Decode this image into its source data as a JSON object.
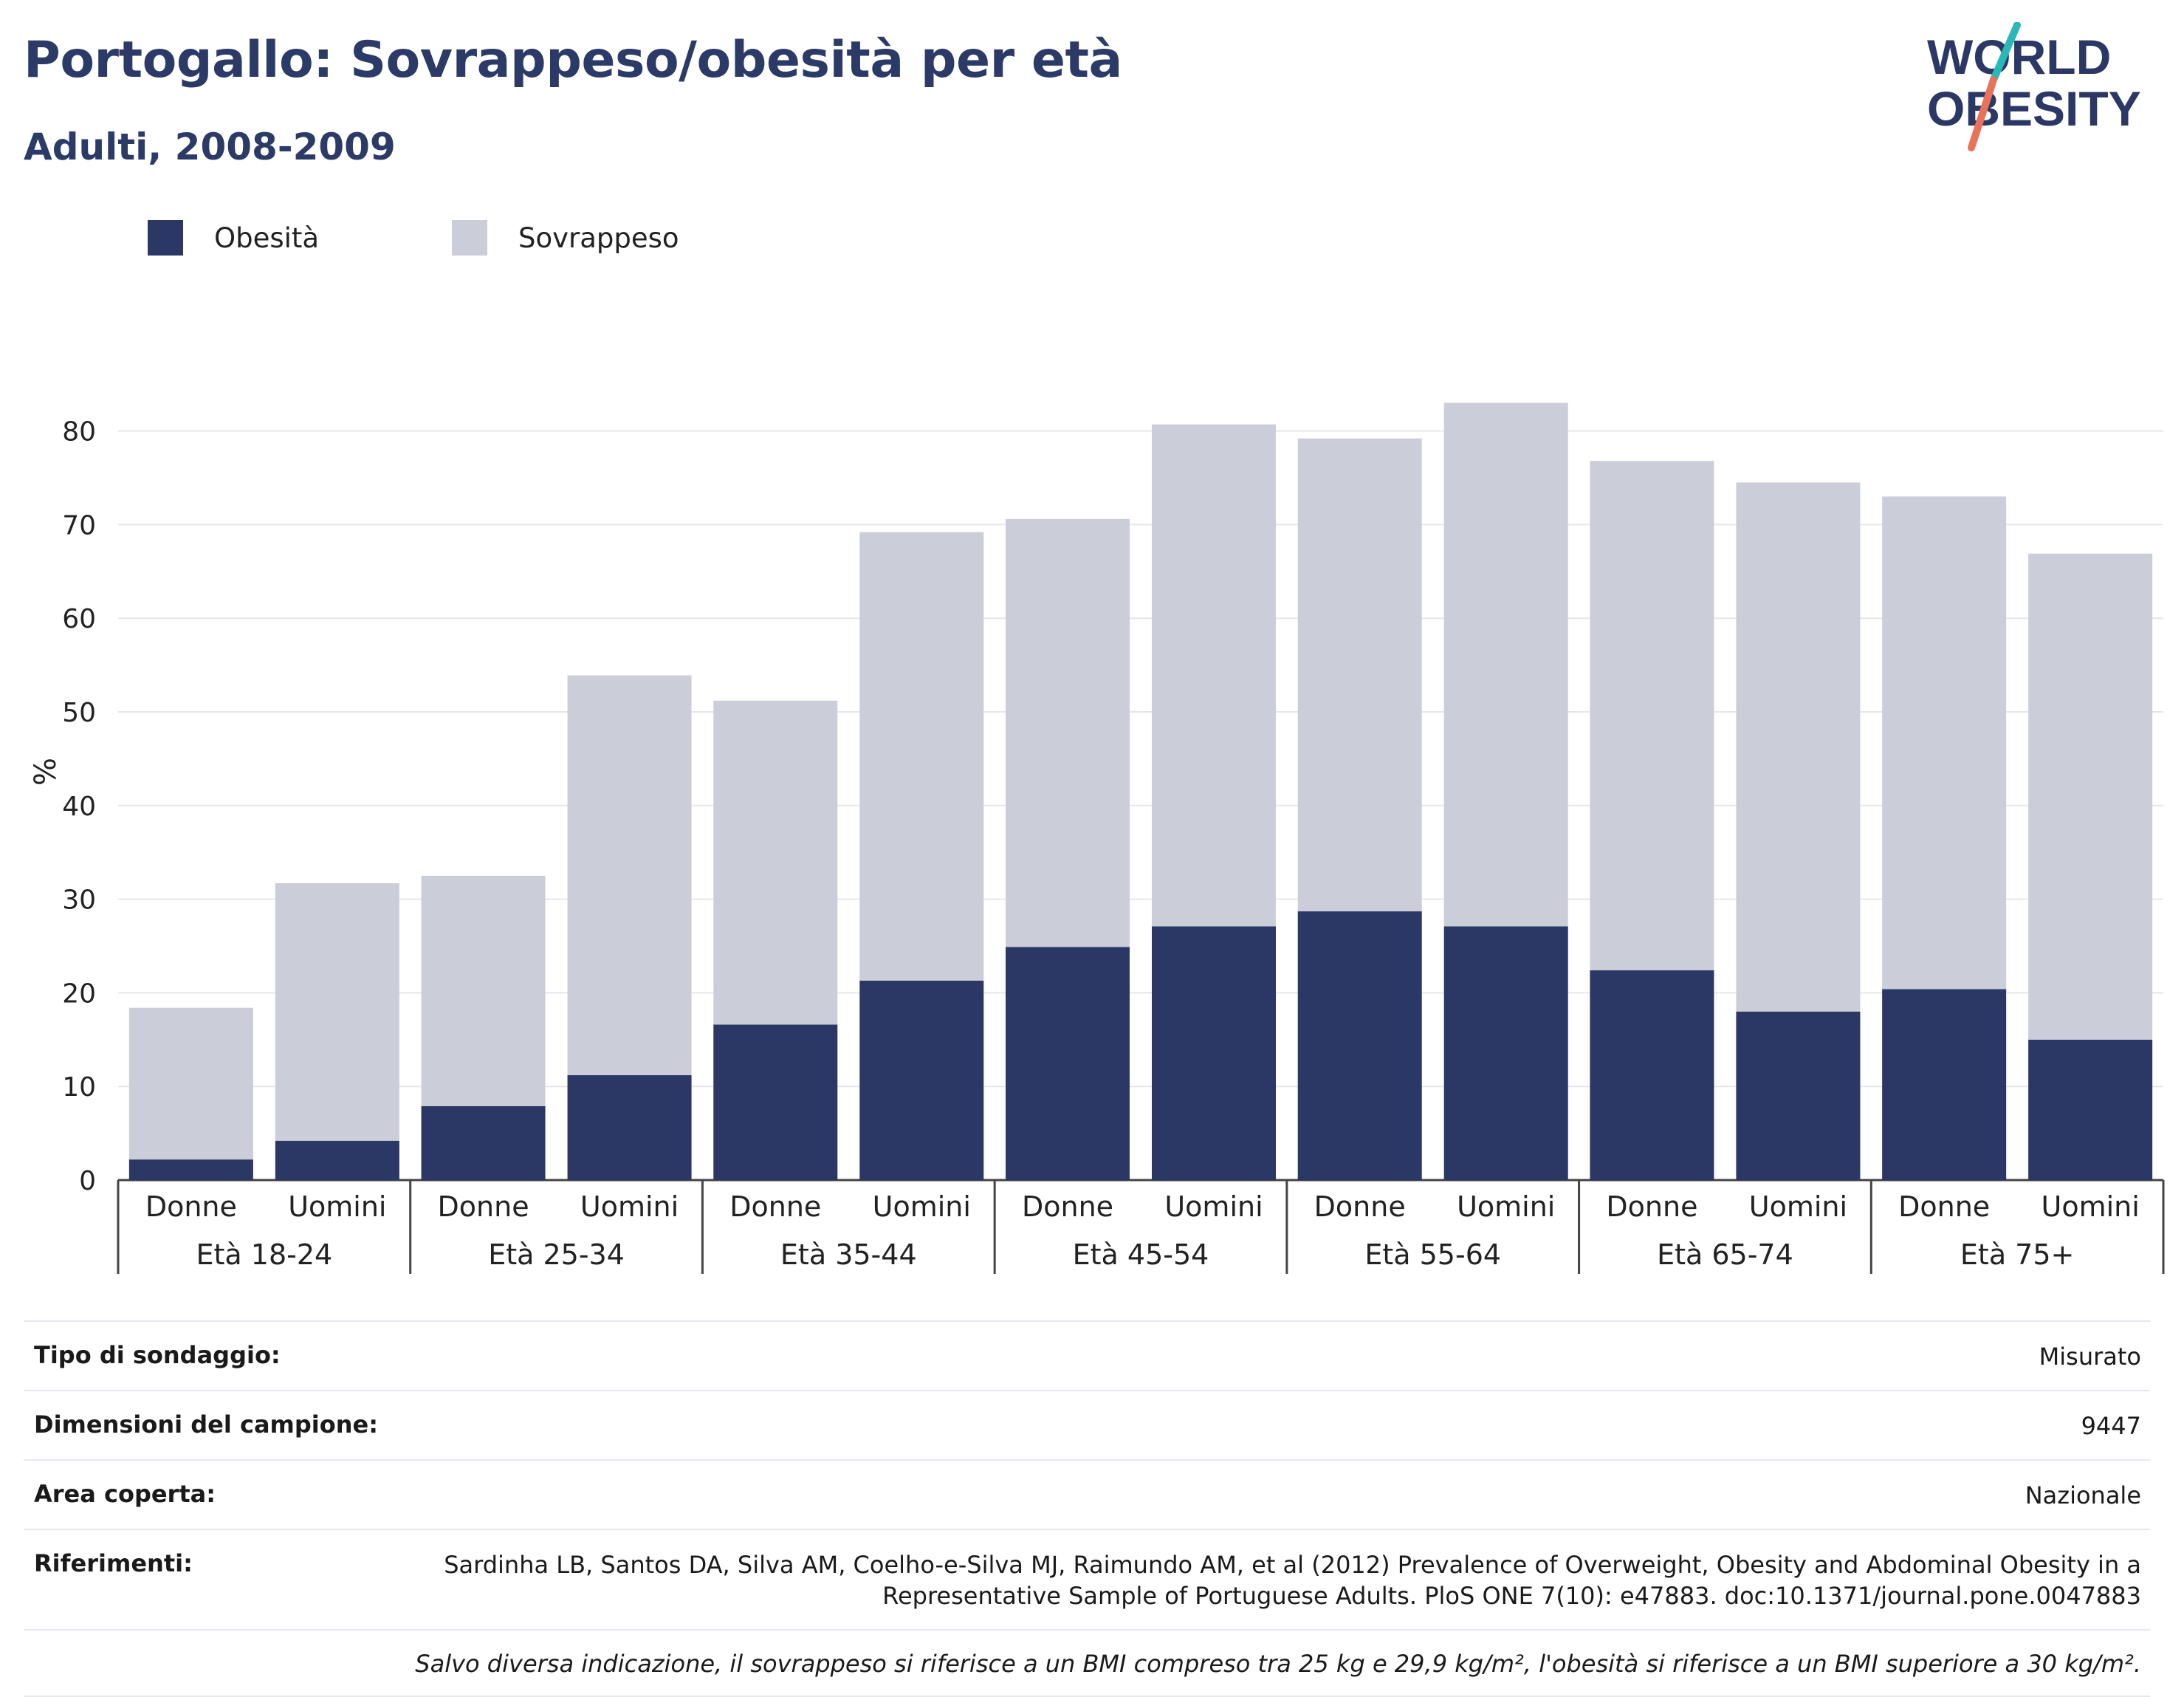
{
  "header": {
    "title": "Portogallo: Sovrappeso/obesità per età",
    "subtitle": "Adulti, 2008-2009"
  },
  "logo": {
    "line1": "WORLD",
    "line2": "OBESITY",
    "accent_colors": [
      "#2ab7b7",
      "#e8735a"
    ]
  },
  "legend": {
    "items": [
      {
        "label": "Obesità",
        "color": "#2b3764"
      },
      {
        "label": "Sovrappeso",
        "color": "#cbcdd9"
      }
    ]
  },
  "chart_data": {
    "type": "bar",
    "stacked": true,
    "ylabel": "%",
    "ylim": [
      0,
      85
    ],
    "yticks": [
      0,
      10,
      20,
      30,
      40,
      50,
      60,
      70,
      80
    ],
    "grid": true,
    "legend_position": "top-left",
    "groups": [
      {
        "label": "Età 18-24",
        "bars": [
          "Donne",
          "Uomini"
        ]
      },
      {
        "label": "Età 25-34",
        "bars": [
          "Donne",
          "Uomini"
        ]
      },
      {
        "label": "Età 35-44",
        "bars": [
          "Donne",
          "Uomini"
        ]
      },
      {
        "label": "Età 45-54",
        "bars": [
          "Donne",
          "Uomini"
        ]
      },
      {
        "label": "Età 55-64",
        "bars": [
          "Donne",
          "Uomini"
        ]
      },
      {
        "label": "Età 65-74",
        "bars": [
          "Donne",
          "Uomini"
        ]
      },
      {
        "label": "Età 75+",
        "bars": [
          "Donne",
          "Uomini"
        ]
      }
    ],
    "series": [
      {
        "name": "Obesità",
        "color": "#2b3764",
        "values": [
          2.2,
          4.2,
          7.9,
          11.2,
          16.6,
          21.3,
          24.9,
          27.1,
          28.7,
          27.1,
          22.4,
          18.0,
          20.4,
          15.0
        ]
      },
      {
        "name": "Sovrappeso",
        "color": "#cbcdd9",
        "values": [
          16.2,
          27.5,
          24.6,
          42.7,
          34.6,
          47.9,
          45.7,
          53.6,
          50.5,
          55.9,
          54.4,
          56.5,
          52.6,
          51.9
        ]
      }
    ]
  },
  "info": {
    "rows": [
      {
        "key": "Tipo di sondaggio:",
        "value": "Misurato"
      },
      {
        "key": "Dimensioni del campione:",
        "value": "9447"
      },
      {
        "key": "Area coperta:",
        "value": "Nazionale"
      },
      {
        "key": "Riferimenti:",
        "value": "Sardinha LB, Santos DA, Silva AM, Coelho-e-Silva MJ, Raimundo AM, et al (2012) Prevalence of Overweight, Obesity and Abdominal Obesity in a Representative Sample of Portuguese Adults. PloS ONE 7(10): e47883. doc:10.1371/journal.pone.0047883"
      }
    ],
    "note": "Salvo diversa indicazione, il sovrappeso si riferisce a un BMI compreso tra 25 kg e 29,9 kg/m², l'obesità si riferisce a un BMI superiore a 30 kg/m²."
  }
}
